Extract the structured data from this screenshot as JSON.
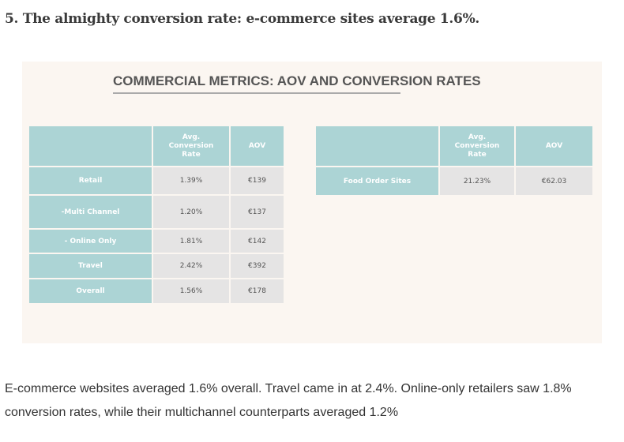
{
  "heading": "5. The almighty conversion rate: e-commerce sites average 1.6%.",
  "image": {
    "title": "COMMERCIAL METRICS: AOV AND CONVERSION RATES",
    "left_table": {
      "headers": [
        "",
        "Avg. Conversion Rate",
        "AOV"
      ],
      "rows": [
        [
          "Retail",
          "1.39%",
          "€139"
        ],
        [
          "-Multi Channel",
          "1.20%",
          "€137"
        ],
        [
          "- Online Only",
          "1.81%",
          "€142"
        ],
        [
          "Travel",
          "2.42%",
          "€392"
        ],
        [
          "Overall",
          "1.56%",
          "€178"
        ]
      ]
    },
    "right_table": {
      "headers": [
        "",
        "Avg. Conversion Rate",
        "AOV"
      ],
      "rows": [
        [
          "Food Order Sites",
          "21.23%",
          "€62.03"
        ]
      ]
    }
  },
  "body": [
    "E-commerce websites averaged 1.6% overall. Travel came in at 2.4%. Online-only retailers saw 1.8%",
    "conversion rates, while their multichannel counterparts averaged 1.2%"
  ]
}
